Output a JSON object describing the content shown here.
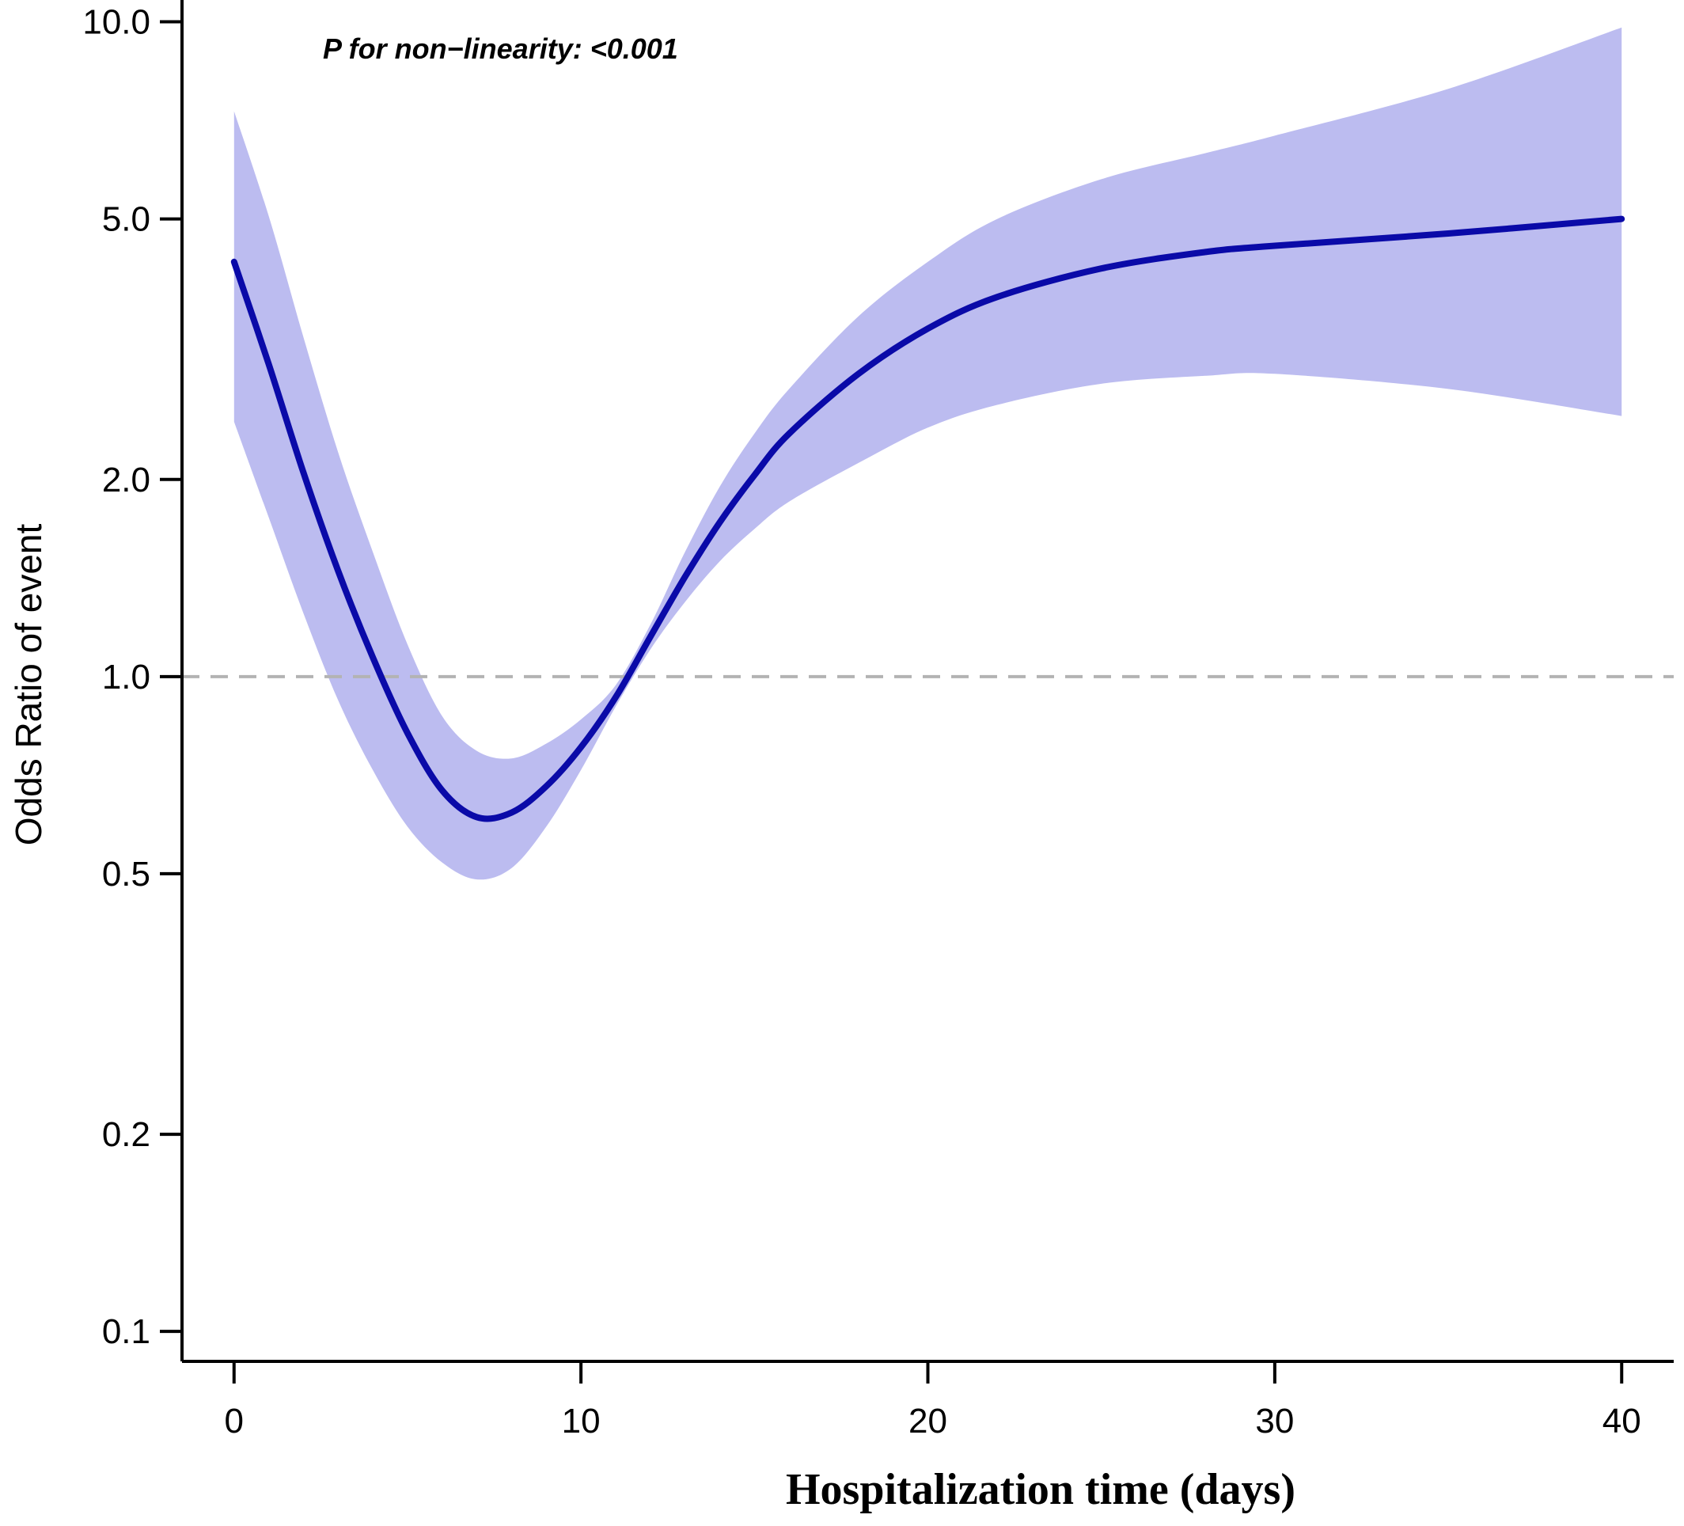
{
  "chart_data": {
    "type": "line",
    "title": "",
    "xlabel": "Hospitalization time (days)",
    "ylabel": "Odds Ratio of event",
    "annotation": "P for non−linearity: <0.001",
    "xlim": [
      -1.5,
      41.5
    ],
    "ylim": [
      0.09,
      10.5
    ],
    "yscale": "log",
    "xticks": [
      0,
      10,
      20,
      30,
      40
    ],
    "xtick_labels": [
      "0",
      "10",
      "20",
      "30",
      "40"
    ],
    "yticks": [
      0.1,
      0.2,
      0.5,
      1.0,
      2.0,
      5.0,
      10.0
    ],
    "ytick_labels": [
      "0.1",
      "0.2",
      "0.5",
      "1.0",
      "2.0",
      "5.0",
      "10.0"
    ],
    "reference_line": {
      "y": 1.0,
      "style": "dashed",
      "color": "#b3b3b3"
    },
    "grid": false,
    "legend": "none",
    "colors": {
      "line": "#0a0aa8",
      "band": "#bcbcf0"
    },
    "series": [
      {
        "x": [
          0,
          1,
          2,
          3,
          4,
          5,
          6,
          7,
          8,
          9,
          10,
          11,
          12,
          13,
          14,
          15,
          16,
          18,
          20,
          22,
          25,
          28,
          30,
          35,
          40
        ],
        "y": [
          4.3,
          3.0,
          2.05,
          1.45,
          1.07,
          0.82,
          0.67,
          0.61,
          0.62,
          0.68,
          0.78,
          0.93,
          1.15,
          1.42,
          1.72,
          2.03,
          2.35,
          2.9,
          3.4,
          3.8,
          4.2,
          4.45,
          4.55,
          4.75,
          5.0
        ],
        "lower": [
          2.45,
          1.75,
          1.25,
          0.92,
          0.72,
          0.59,
          0.52,
          0.49,
          0.51,
          0.59,
          0.72,
          0.9,
          1.1,
          1.3,
          1.5,
          1.68,
          1.85,
          2.12,
          2.4,
          2.6,
          2.8,
          2.88,
          2.9,
          2.75,
          2.5
        ],
        "upper": [
          7.3,
          5.05,
          3.3,
          2.2,
          1.55,
          1.12,
          0.87,
          0.77,
          0.75,
          0.79,
          0.86,
          0.97,
          1.2,
          1.55,
          1.95,
          2.35,
          2.75,
          3.55,
          4.3,
          5.0,
          5.75,
          6.3,
          6.7,
          7.9,
          9.8
        ]
      }
    ]
  }
}
